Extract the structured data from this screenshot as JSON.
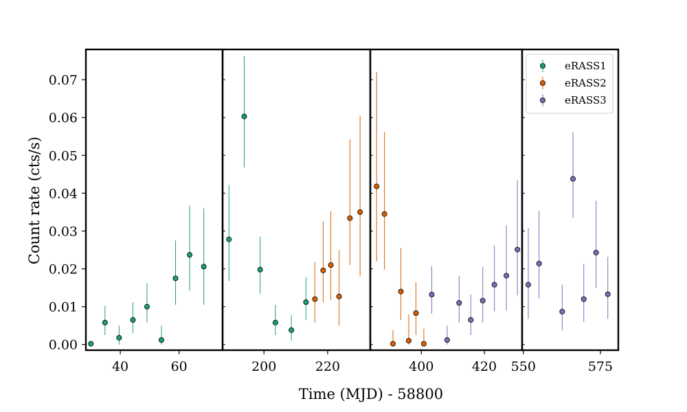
{
  "chart_data": {
    "type": "scatter",
    "xlabel": "Time (MJD) - 58800",
    "ylabel": "Count rate (cts/s)",
    "ylim": [
      -0.0015,
      0.078
    ],
    "yticks": [
      0.0,
      0.01,
      0.02,
      0.03,
      0.04,
      0.05,
      0.06,
      0.07
    ],
    "ytick_labels": [
      "0.00",
      "0.01",
      "0.02",
      "0.03",
      "0.04",
      "0.05",
      "0.06",
      "0.07"
    ],
    "legend_position": "top-right",
    "colors": {
      "eRASS1": "#1b9e77",
      "eRASS2": "#d95f02",
      "eRASS3": "#7570b3"
    },
    "series": [
      {
        "name": "eRASS1",
        "color": "#1b9e77"
      },
      {
        "name": "eRASS2",
        "color": "#d95f02"
      },
      {
        "name": "eRASS3",
        "color": "#7570b3"
      }
    ],
    "panels": [
      {
        "xlim": [
          28.3,
          74.8
        ],
        "xticks": [
          40,
          60
        ],
        "xtick_labels": [
          "40",
          "60"
        ],
        "points": [
          {
            "series": "eRASS1",
            "x": 30.0,
            "y": 0.0002,
            "lo": 0.0,
            "hi": 0.0005
          },
          {
            "series": "eRASS1",
            "x": 34.8,
            "y": 0.0058,
            "lo": 0.0025,
            "hi": 0.0102
          },
          {
            "series": "eRASS1",
            "x": 39.6,
            "y": 0.0018,
            "lo": 0.0,
            "hi": 0.005
          },
          {
            "series": "eRASS1",
            "x": 44.3,
            "y": 0.0065,
            "lo": 0.003,
            "hi": 0.0112
          },
          {
            "series": "eRASS1",
            "x": 49.1,
            "y": 0.01,
            "lo": 0.0058,
            "hi": 0.0162
          },
          {
            "series": "eRASS1",
            "x": 54.0,
            "y": 0.0012,
            "lo": 0.0,
            "hi": 0.005
          },
          {
            "series": "eRASS1",
            "x": 58.8,
            "y": 0.0175,
            "lo": 0.0105,
            "hi": 0.0275
          },
          {
            "series": "eRASS1",
            "x": 63.6,
            "y": 0.0237,
            "lo": 0.0142,
            "hi": 0.0367
          },
          {
            "series": "eRASS1",
            "x": 68.4,
            "y": 0.0206,
            "lo": 0.0105,
            "hi": 0.036
          }
        ]
      },
      {
        "xlim": [
          187.0,
          233.4
        ],
        "xticks": [
          200,
          220
        ],
        "xtick_labels": [
          "200",
          "220"
        ],
        "points": [
          {
            "series": "eRASS1",
            "x": 189.0,
            "y": 0.0278,
            "lo": 0.0168,
            "hi": 0.0422
          },
          {
            "series": "eRASS1",
            "x": 193.8,
            "y": 0.0603,
            "lo": 0.0468,
            "hi": 0.0762
          },
          {
            "series": "eRASS1",
            "x": 198.8,
            "y": 0.0198,
            "lo": 0.0135,
            "hi": 0.0285
          },
          {
            "series": "eRASS1",
            "x": 203.6,
            "y": 0.0058,
            "lo": 0.0025,
            "hi": 0.0105
          },
          {
            "series": "eRASS1",
            "x": 208.6,
            "y": 0.0038,
            "lo": 0.001,
            "hi": 0.0078
          },
          {
            "series": "eRASS1",
            "x": 213.2,
            "y": 0.0112,
            "lo": 0.0065,
            "hi": 0.0178
          },
          {
            "series": "eRASS2",
            "x": 216.0,
            "y": 0.012,
            "lo": 0.0058,
            "hi": 0.0218
          },
          {
            "series": "eRASS2",
            "x": 218.6,
            "y": 0.0196,
            "lo": 0.0112,
            "hi": 0.0325
          },
          {
            "series": "eRASS2",
            "x": 221.0,
            "y": 0.021,
            "lo": 0.0118,
            "hi": 0.0352
          },
          {
            "series": "eRASS2",
            "x": 223.6,
            "y": 0.0127,
            "lo": 0.005,
            "hi": 0.025
          },
          {
            "series": "eRASS2",
            "x": 227.0,
            "y": 0.0334,
            "lo": 0.021,
            "hi": 0.0542
          },
          {
            "series": "eRASS2",
            "x": 230.2,
            "y": 0.035,
            "lo": 0.018,
            "hi": 0.0605
          }
        ]
      },
      {
        "xlim": [
          383.8,
          432.0
        ],
        "xticks": [
          400,
          420
        ],
        "xtick_labels": [
          "400",
          "420"
        ],
        "points": [
          {
            "series": "eRASS2",
            "x": 385.8,
            "y": 0.0418,
            "lo": 0.022,
            "hi": 0.072
          },
          {
            "series": "eRASS2",
            "x": 388.3,
            "y": 0.0345,
            "lo": 0.0198,
            "hi": 0.0562
          },
          {
            "series": "eRASS2",
            "x": 391.0,
            "y": 0.0002,
            "lo": 0.0,
            "hi": 0.0038
          },
          {
            "series": "eRASS2",
            "x": 393.5,
            "y": 0.014,
            "lo": 0.0065,
            "hi": 0.0255
          },
          {
            "series": "eRASS2",
            "x": 396.0,
            "y": 0.001,
            "lo": 0.0,
            "hi": 0.008
          },
          {
            "series": "eRASS2",
            "x": 398.3,
            "y": 0.0083,
            "lo": 0.0025,
            "hi": 0.0165
          },
          {
            "series": "eRASS2",
            "x": 400.8,
            "y": 0.0002,
            "lo": 0.0,
            "hi": 0.0042
          },
          {
            "series": "eRASS3",
            "x": 403.3,
            "y": 0.0132,
            "lo": 0.0082,
            "hi": 0.0207
          },
          {
            "series": "eRASS3",
            "x": 408.2,
            "y": 0.0012,
            "lo": 0.0,
            "hi": 0.005
          },
          {
            "series": "eRASS3",
            "x": 412.0,
            "y": 0.011,
            "lo": 0.0058,
            "hi": 0.0182
          },
          {
            "series": "eRASS3",
            "x": 415.7,
            "y": 0.0065,
            "lo": 0.0025,
            "hi": 0.0132
          },
          {
            "series": "eRASS3",
            "x": 419.5,
            "y": 0.0116,
            "lo": 0.0058,
            "hi": 0.0205
          },
          {
            "series": "eRASS3",
            "x": 423.2,
            "y": 0.0158,
            "lo": 0.0088,
            "hi": 0.0262
          },
          {
            "series": "eRASS3",
            "x": 427.0,
            "y": 0.0182,
            "lo": 0.009,
            "hi": 0.0315
          },
          {
            "series": "eRASS3",
            "x": 430.5,
            "y": 0.0251,
            "lo": 0.013,
            "hi": 0.0435
          }
        ]
      },
      {
        "xlim": [
          549.6,
          580.8
        ],
        "xticks": [
          550,
          575
        ],
        "xtick_labels": [
          "550",
          "575"
        ],
        "points": [
          {
            "series": "eRASS3",
            "x": 551.6,
            "y": 0.0158,
            "lo": 0.0068,
            "hi": 0.0308
          },
          {
            "series": "eRASS3",
            "x": 555.1,
            "y": 0.0214,
            "lo": 0.0122,
            "hi": 0.0353
          },
          {
            "series": "eRASS3",
            "x": 562.6,
            "y": 0.0087,
            "lo": 0.0038,
            "hi": 0.0158
          },
          {
            "series": "eRASS3",
            "x": 566.1,
            "y": 0.0438,
            "lo": 0.0335,
            "hi": 0.0562
          },
          {
            "series": "eRASS3",
            "x": 569.6,
            "y": 0.012,
            "lo": 0.006,
            "hi": 0.0212
          },
          {
            "series": "eRASS3",
            "x": 573.6,
            "y": 0.0243,
            "lo": 0.015,
            "hi": 0.038
          },
          {
            "series": "eRASS3",
            "x": 577.4,
            "y": 0.0133,
            "lo": 0.0068,
            "hi": 0.0232
          }
        ]
      }
    ]
  }
}
